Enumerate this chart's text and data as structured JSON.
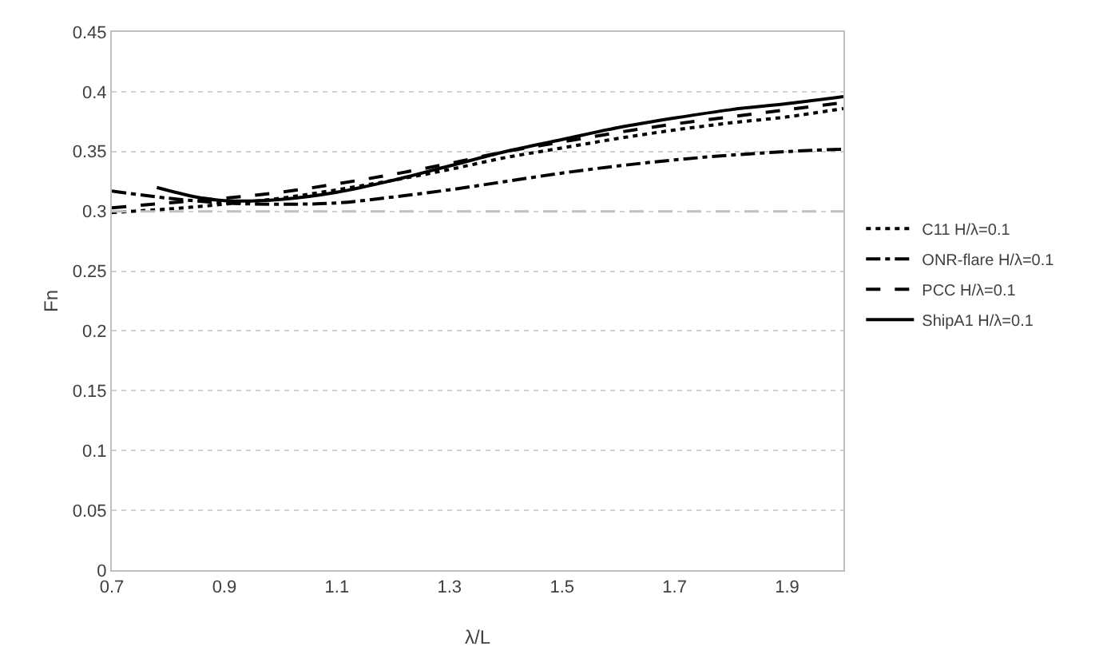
{
  "chart_data": {
    "type": "line",
    "xlabel": "λ/L",
    "ylabel": "Fn",
    "xlim": [
      0.7,
      2.0
    ],
    "xticks": [
      0.7,
      0.9,
      1.1,
      1.3,
      1.5,
      1.7,
      1.9
    ],
    "ylim": [
      0,
      0.45
    ],
    "yticks": [
      0,
      0.05,
      0.1,
      0.15,
      0.2,
      0.25,
      0.3,
      0.35,
      0.4,
      0.45
    ],
    "grid": "y",
    "legend": "right",
    "marker": "none",
    "x": [
      0.7,
      0.8,
      0.9,
      1.0,
      1.1,
      1.2,
      1.3,
      1.4,
      1.5,
      1.6,
      1.7,
      1.8,
      1.9,
      2.0
    ],
    "series": [
      {
        "name": "C11 H/λ=0.1",
        "color": "#000000",
        "line_style": "dotted",
        "values": [
          0.299,
          0.302,
          0.306,
          0.311,
          0.318,
          0.326,
          0.335,
          0.345,
          0.353,
          0.361,
          0.368,
          0.374,
          0.379,
          0.386
        ]
      },
      {
        "name": "ONR-flare H/λ=0.1",
        "color": "#000000",
        "line_style": "dashdot",
        "values": [
          0.317,
          0.311,
          0.307,
          0.306,
          0.307,
          0.312,
          0.318,
          0.325,
          0.332,
          0.338,
          0.343,
          0.347,
          0.35,
          0.352
        ]
      },
      {
        "name": "PCC H/λ=0.1",
        "color": "#000000",
        "line_style": "dashed",
        "values": [
          0.303,
          0.307,
          0.311,
          0.316,
          0.323,
          0.331,
          0.34,
          0.35,
          0.358,
          0.366,
          0.373,
          0.379,
          0.385,
          0.391
        ]
      },
      {
        "name": "ShipA1 H/λ=0.1",
        "color": "#000000",
        "line_style": "solid",
        "x": [
          0.78,
          0.85,
          0.9,
          1.0,
          1.1,
          1.2,
          1.3,
          1.4,
          1.5,
          1.6,
          1.7,
          1.8,
          1.9,
          2.0
        ],
        "values": [
          0.32,
          0.312,
          0.309,
          0.31,
          0.316,
          0.326,
          0.338,
          0.35,
          0.36,
          0.37,
          0.378,
          0.385,
          0.39,
          0.396
        ]
      }
    ],
    "ref_lines": [
      {
        "axis": "y",
        "value": 0.3,
        "color": "#bfbfbf",
        "line_style": "dashed"
      }
    ]
  }
}
